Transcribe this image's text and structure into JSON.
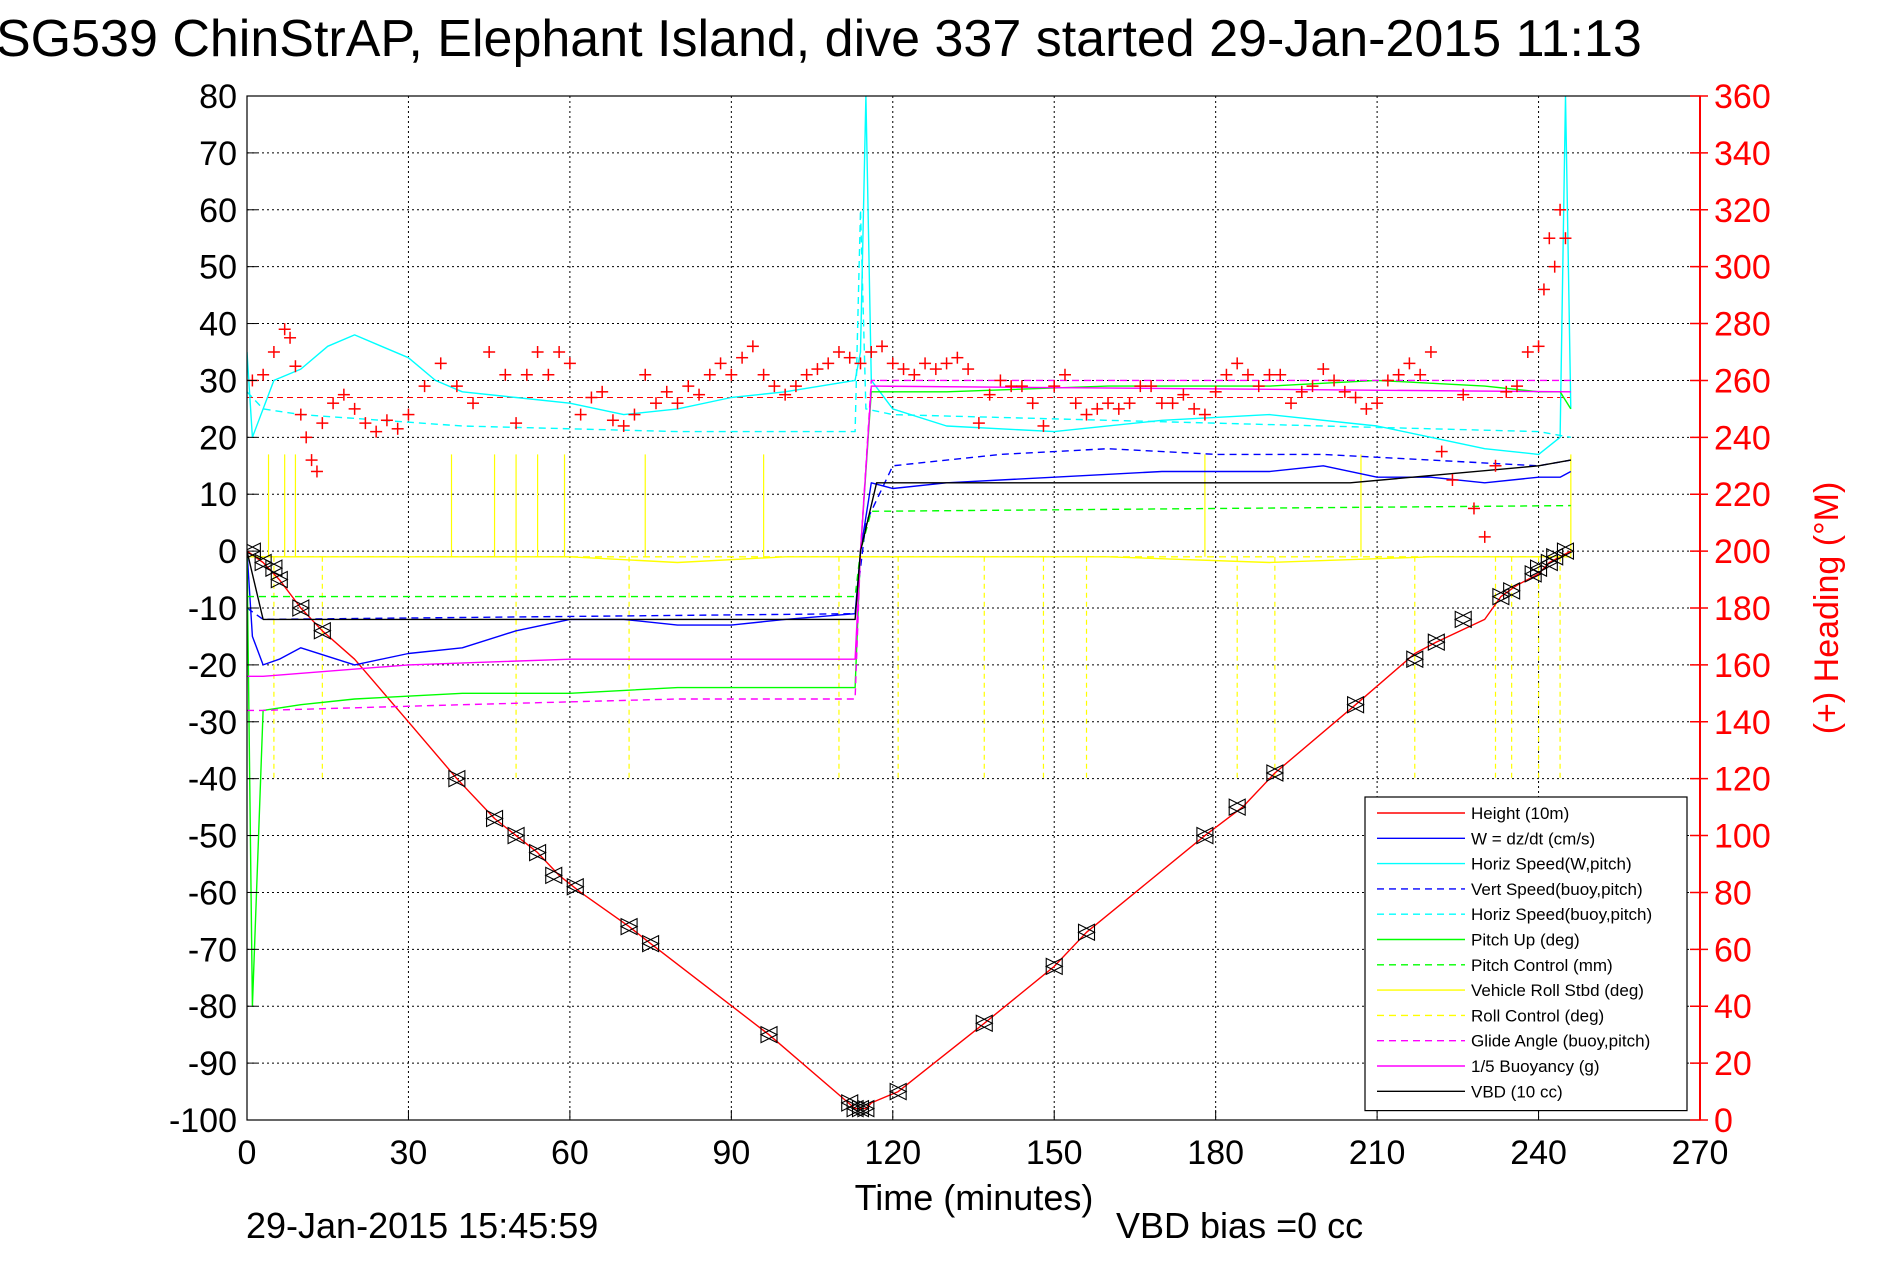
{
  "chart_data": {
    "type": "line",
    "title": "SG539 ChinStrAP, Elephant Island, dive 337 started 29-Jan-2015 11:13",
    "xlabel": "Time (minutes)",
    "ylabel_left": "",
    "ylabel_right": "(+) Heading (°M)",
    "xlim": [
      0,
      270
    ],
    "ylim_left": [
      -100,
      80
    ],
    "ylim_right": [
      0,
      360
    ],
    "x_ticks": [
      0,
      30,
      60,
      90,
      120,
      150,
      180,
      210,
      240,
      270
    ],
    "y_ticks_left": [
      80,
      70,
      60,
      50,
      40,
      30,
      20,
      10,
      0,
      -10,
      -20,
      -30,
      -40,
      -50,
      -60,
      -70,
      -80,
      -90,
      -100
    ],
    "y_ticks_right": [
      360,
      340,
      320,
      300,
      280,
      260,
      240,
      220,
      200,
      180,
      160,
      140,
      120,
      100,
      80,
      60,
      40,
      20,
      0
    ],
    "grid": true,
    "legend_position": "bottom-right",
    "footer_left": "29-Jan-2015 15:45:59",
    "footer_right": "VBD bias =0 cc",
    "series": [
      {
        "name": "Height (10m)",
        "color": "#ff0000",
        "dash": "solid",
        "x": [
          0,
          3,
          6,
          10,
          14,
          20,
          30,
          39,
          46,
          50,
          54,
          58,
          62,
          71,
          75,
          97,
          113,
          115,
          116,
          121,
          137,
          150,
          156,
          178,
          185,
          191,
          206,
          217,
          221,
          230,
          233,
          236,
          240,
          242,
          244,
          246
        ],
        "y": [
          0,
          -2,
          -5,
          -10,
          -14,
          -19,
          -30,
          -40,
          -47,
          -50,
          -53,
          -57,
          -60,
          -66,
          -69,
          -85,
          -98,
          -98,
          -97,
          -95,
          -83,
          -73,
          -67,
          -50,
          -45,
          -39,
          -27,
          -18,
          -16,
          -12,
          -8,
          -6,
          -4,
          -2,
          -1,
          0
        ]
      },
      {
        "name": "W = dz/dt (cm/s)",
        "color": "#0000ff",
        "dash": "solid",
        "x": [
          0,
          1,
          3,
          6,
          10,
          20,
          30,
          40,
          50,
          60,
          70,
          80,
          90,
          100,
          113,
          114,
          116,
          120,
          130,
          150,
          170,
          190,
          200,
          210,
          220,
          230,
          240,
          244,
          246
        ],
        "y": [
          0,
          -15,
          -20,
          -19,
          -17,
          -20,
          -18,
          -17,
          -14,
          -12,
          -12,
          -13,
          -13,
          -12,
          -11,
          0,
          12,
          11,
          12,
          13,
          14,
          14,
          15,
          13,
          13,
          12,
          13,
          13,
          14
        ]
      },
      {
        "name": "Horiz Speed(W,pitch)",
        "color": "#00ffff",
        "dash": "solid",
        "x": [
          0,
          1,
          5,
          10,
          15,
          20,
          25,
          30,
          35,
          40,
          50,
          60,
          70,
          80,
          90,
          100,
          113,
          114,
          115,
          116,
          120,
          130,
          150,
          170,
          190,
          210,
          220,
          230,
          240,
          244,
          245,
          246
        ],
        "y": [
          35,
          20,
          30,
          32,
          36,
          38,
          36,
          34,
          30,
          28,
          27,
          26,
          24,
          25,
          27,
          28,
          30,
          35,
          80,
          30,
          25,
          22,
          21,
          23,
          24,
          22,
          20,
          18,
          17,
          20,
          80,
          25
        ]
      },
      {
        "name": "Vert Speed(buoy,pitch)",
        "color": "#0000ff",
        "dash": "dashed",
        "x": [
          0,
          3,
          113,
          115,
          120,
          140,
          160,
          180,
          200,
          220,
          240,
          246
        ],
        "y": [
          -10,
          -12,
          -11,
          5,
          15,
          17,
          18,
          17,
          17,
          16,
          15,
          16
        ]
      },
      {
        "name": "Horiz Speed(buoy,pitch)",
        "color": "#00ffff",
        "dash": "dashed",
        "x": [
          0,
          3,
          10,
          40,
          80,
          113,
          114,
          115,
          120,
          160,
          200,
          240,
          246
        ],
        "y": [
          28,
          25,
          24,
          22,
          21,
          21,
          60,
          25,
          24,
          23,
          22,
          21,
          20
        ]
      },
      {
        "name": "Pitch Up (deg)",
        "color": "#00ff00",
        "dash": "solid",
        "x": [
          0,
          1,
          3,
          10,
          20,
          40,
          60,
          80,
          100,
          113,
          114,
          116,
          130,
          160,
          190,
          210,
          230,
          240,
          244,
          246
        ],
        "y": [
          0,
          -80,
          -28,
          -27,
          -26,
          -25,
          -25,
          -24,
          -24,
          -24,
          0,
          28,
          28,
          29,
          29,
          30,
          29,
          28,
          28,
          25
        ]
      },
      {
        "name": "Pitch Control (mm)",
        "color": "#00ff00",
        "dash": "dashed",
        "x": [
          0,
          3,
          113,
          114,
          116,
          246
        ],
        "y": [
          -8,
          -8,
          -8,
          0,
          7,
          8
        ]
      },
      {
        "name": "Vehicle Roll Stbd (deg)",
        "color": "#ffff00",
        "dash": "solid",
        "x": [
          0,
          20,
          40,
          60,
          80,
          100,
          113,
          130,
          160,
          190,
          220,
          246
        ],
        "y": [
          -1,
          -1,
          -1,
          -1,
          -2,
          -1,
          -1,
          -1,
          -1,
          -2,
          -1,
          -1
        ]
      },
      {
        "name": "Roll Control (deg)",
        "color": "#ffff00",
        "dash": "dashed",
        "x": [
          0,
          246
        ],
        "y": [
          -1,
          -1
        ]
      },
      {
        "name": "Glide Angle (buoy,pitch)",
        "color": "#ff00ff",
        "dash": "dashed",
        "x": [
          0,
          3,
          40,
          80,
          113,
          114,
          116,
          150,
          190,
          230,
          246
        ],
        "y": [
          -28,
          -28,
          -27,
          -26,
          -26,
          0,
          30,
          30,
          30,
          30,
          30
        ]
      },
      {
        "name": "1/5 Buoyancy (g)",
        "color": "#ff00ff",
        "dash": "solid",
        "x": [
          0,
          3,
          30,
          60,
          113,
          114,
          116,
          246
        ],
        "y": [
          -22,
          -22,
          -20,
          -19,
          -19,
          0,
          29,
          28
        ]
      },
      {
        "name": "VBD (10 cc)",
        "color": "#000000",
        "dash": "solid",
        "x": [
          0,
          3,
          60,
          113,
          114,
          117,
          205,
          240,
          246
        ],
        "y": [
          0,
          -12,
          -12,
          -12,
          0,
          12,
          12,
          15,
          16
        ]
      }
    ],
    "heading": {
      "name": "(+) Heading (°M)",
      "color": "#ff0000",
      "marker": "+",
      "axis": "right",
      "reference_value": 254,
      "x": [
        1,
        3,
        5,
        7,
        8,
        9,
        10,
        11,
        12,
        13,
        14,
        16,
        18,
        20,
        22,
        24,
        26,
        28,
        30,
        33,
        36,
        39,
        42,
        45,
        48,
        50,
        52,
        54,
        56,
        58,
        60,
        62,
        64,
        66,
        68,
        70,
        72,
        74,
        76,
        78,
        80,
        82,
        84,
        86,
        88,
        90,
        92,
        94,
        96,
        98,
        100,
        102,
        104,
        106,
        108,
        110,
        112,
        114,
        116,
        118,
        120,
        122,
        124,
        126,
        128,
        130,
        132,
        134,
        136,
        138,
        140,
        142,
        144,
        146,
        148,
        150,
        152,
        154,
        156,
        158,
        160,
        162,
        164,
        166,
        168,
        170,
        172,
        174,
        176,
        178,
        180,
        182,
        184,
        186,
        188,
        190,
        192,
        194,
        196,
        198,
        200,
        202,
        204,
        206,
        208,
        210,
        212,
        214,
        216,
        218,
        220,
        222,
        224,
        226,
        228,
        230,
        232,
        234,
        236,
        238,
        240,
        241,
        242,
        243,
        244,
        245
      ],
      "y": [
        260,
        262,
        270,
        278,
        275,
        265,
        248,
        240,
        232,
        228,
        245,
        252,
        255,
        250,
        245,
        242,
        246,
        243,
        248,
        258,
        266,
        258,
        252,
        270,
        262,
        245,
        262,
        270,
        262,
        270,
        266,
        248,
        254,
        256,
        246,
        244,
        248,
        262,
        252,
        256,
        252,
        258,
        255,
        262,
        266,
        262,
        268,
        272,
        262,
        258,
        255,
        258,
        262,
        264,
        266,
        270,
        268,
        266,
        270,
        272,
        266,
        264,
        262,
        266,
        264,
        266,
        268,
        264,
        245,
        255,
        260,
        258,
        258,
        252,
        244,
        258,
        262,
        252,
        248,
        250,
        252,
        250,
        252,
        258,
        258,
        252,
        252,
        255,
        250,
        248,
        256,
        262,
        266,
        262,
        258,
        262,
        262,
        252,
        256,
        258,
        264,
        260,
        256,
        254,
        250,
        252,
        260,
        262,
        266,
        262,
        270,
        235,
        225,
        255,
        215,
        205,
        230,
        256,
        258,
        270,
        272,
        292,
        310,
        300,
        320,
        310
      ]
    },
    "depth_markers": {
      "marker": "triangle",
      "color": "#000000",
      "x": [
        1,
        3,
        5,
        6,
        10,
        14,
        39,
        46,
        50,
        54,
        57,
        61,
        71,
        75,
        97,
        112,
        113,
        114,
        115,
        121,
        137,
        150,
        156,
        178,
        184,
        191,
        206,
        217,
        221,
        226,
        233,
        235,
        239,
        240,
        242,
        243,
        245
      ],
      "y": [
        0,
        -2,
        -3,
        -5,
        -10,
        -14,
        -40,
        -47,
        -50,
        -53,
        -57,
        -59,
        -66,
        -69,
        -85,
        -97,
        -98,
        -98,
        -98,
        -95,
        -83,
        -73,
        -67,
        -50,
        -45,
        -39,
        -27,
        -19,
        -16,
        -12,
        -8,
        -7,
        -4,
        -3,
        -2,
        -1,
        0
      ]
    },
    "spikes": {
      "roll_up": {
        "color": "#ffff00",
        "x": [
          4,
          7,
          9,
          38,
          46,
          50,
          54,
          59,
          74,
          96,
          178,
          207,
          246
        ],
        "y": 17
      },
      "roll_down": {
        "color": "#ffff00",
        "x": [
          5,
          14,
          50,
          71,
          110,
          121,
          137,
          148,
          156,
          184,
          191,
          217,
          232,
          235,
          240,
          244
        ],
        "y": -40
      }
    }
  }
}
